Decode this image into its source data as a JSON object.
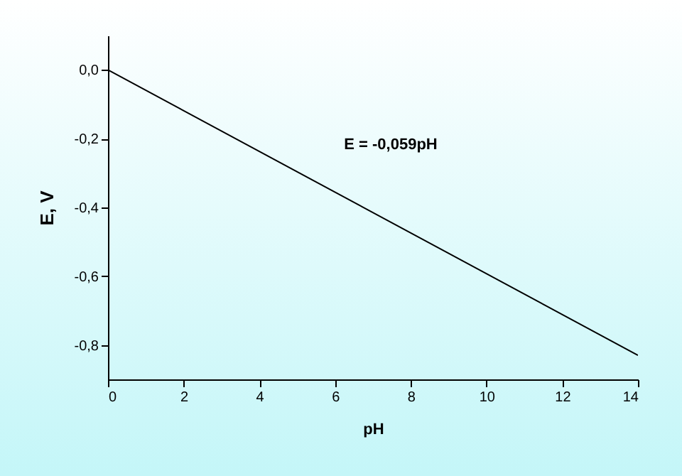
{
  "chart_data": {
    "type": "line",
    "xlabel": "pH",
    "ylabel": "E, V",
    "annotations": [
      "E = -0,059pH"
    ],
    "x": [
      0,
      14
    ],
    "series": [
      {
        "color": "#000000",
        "values": [
          0,
          -0.83
        ]
      }
    ],
    "xlim": [
      0,
      14
    ],
    "xticks": [
      0,
      2,
      4,
      6,
      8,
      10,
      12,
      14
    ],
    "ylim": [
      -0.9,
      0.1
    ],
    "yticks": [
      {
        "value": 0,
        "label": "0,0"
      },
      {
        "value": -0.2,
        "label": "-0,2"
      },
      {
        "value": -0.4,
        "label": "-0,4"
      },
      {
        "value": -0.6,
        "label": "-0,6"
      },
      {
        "value": -0.8,
        "label": "-0,8"
      }
    ],
    "grid": false,
    "marker": "none",
    "line_style": "solid"
  }
}
